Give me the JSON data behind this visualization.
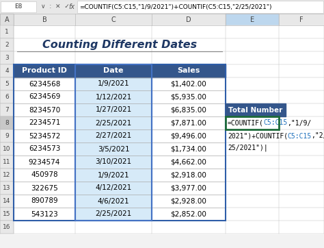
{
  "title": "Counting Different Dates",
  "formula_bar_text": "=COUNTIF(C5:C15,\"1/9/2021\")+COUNTIF(C5:C15,\"2/25/2021\")",
  "headers": [
    "Product ID",
    "Date",
    "Sales"
  ],
  "rows": [
    [
      "6234568",
      "1/9/2021",
      "$1,402.00"
    ],
    [
      "6234569",
      "1/12/2021",
      "$5,935.00"
    ],
    [
      "8234570",
      "1/27/2021",
      "$6,835.00"
    ],
    [
      "2234571",
      "2/25/2021",
      "$7,871.00"
    ],
    [
      "5234572",
      "2/27/2021",
      "$9,496.00"
    ],
    [
      "6234573",
      "3/5/2021",
      "$1,734.00"
    ],
    [
      "9234574",
      "3/10/2021",
      "$4,662.00"
    ],
    [
      "450978",
      "1/9/2021",
      "$2,918.00"
    ],
    [
      "322675",
      "4/12/2021",
      "$3,977.00"
    ],
    [
      "890789",
      "4/6/2021",
      "$2,928.00"
    ],
    [
      "543123",
      "2/25/2021",
      "$2,852.00"
    ]
  ],
  "header_bg": "#34568B",
  "header_text": "#FFFFFF",
  "title_color": "#1F3864",
  "date_col_bg": "#D6EAF8",
  "row_bg": "#FFFFFF",
  "grid_color": "#BBBBBB",
  "col_letters": [
    "A",
    "B",
    "C",
    "D",
    "E",
    "F"
  ],
  "total_number_label": "Total Number",
  "total_number_bg": "#34568B",
  "total_number_text": "#FFFFFF",
  "formula_black": "#000000",
  "formula_blue": "#1A6EBB",
  "fb_formula": "=COUNTIF(C5:C15,\"1/9/2021\")+COUNTIF(C5:C15,\"2/25/2021\")"
}
